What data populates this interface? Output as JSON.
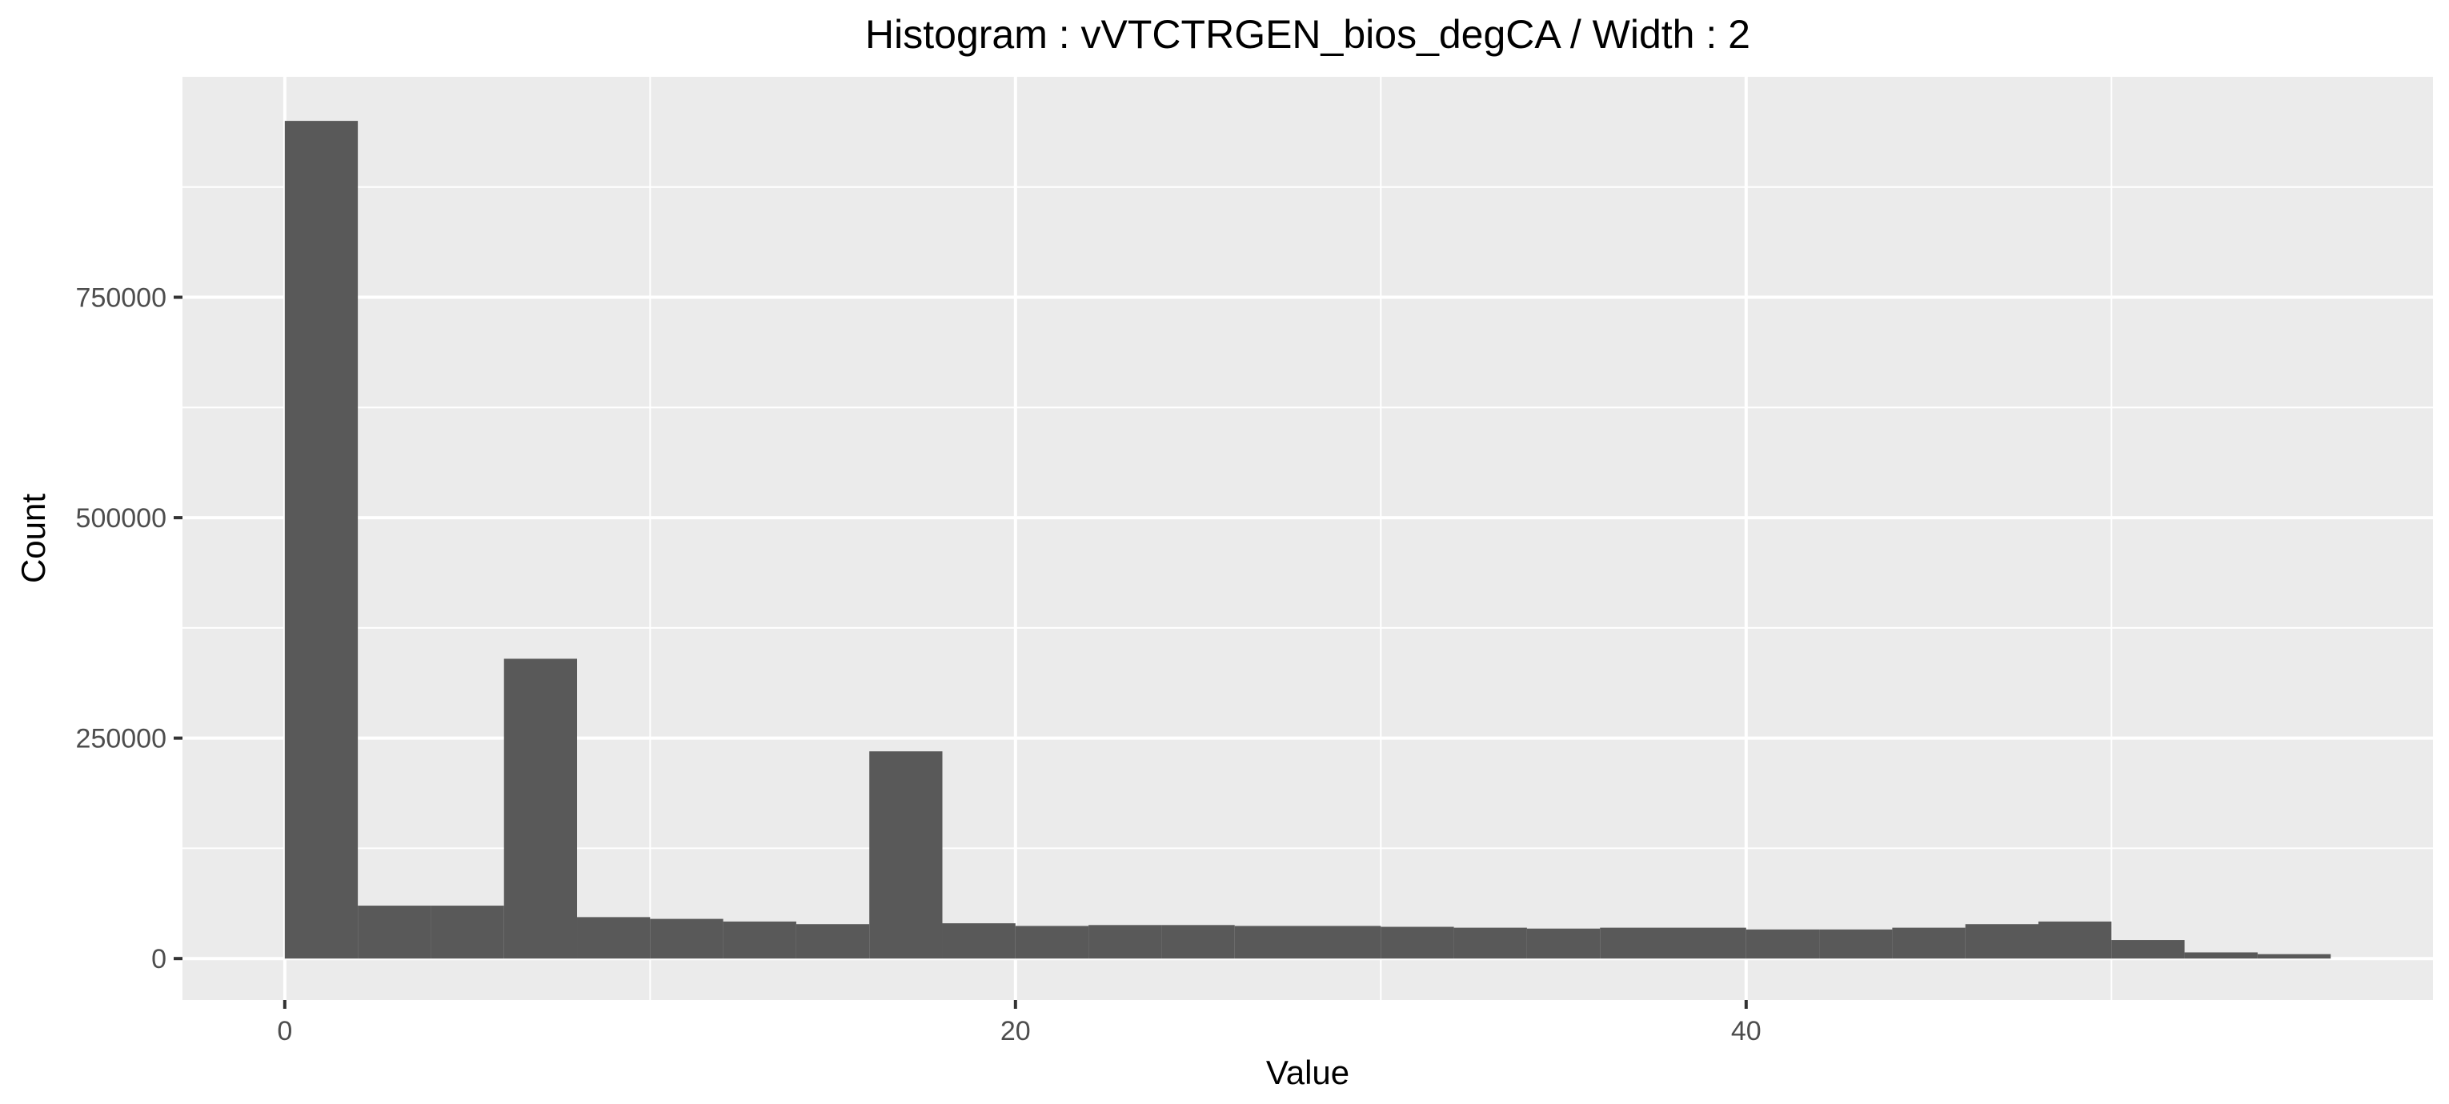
{
  "chart_data": {
    "type": "bar",
    "title": "Histogram : vVTCTRGEN_bios_degCA / Width : 2",
    "xlabel": "Value",
    "ylabel": "Count",
    "bin_width": 2,
    "xlim": [
      -2.8,
      58.8
    ],
    "ylim": [
      -47000,
      1000000
    ],
    "x_ticks": [
      0,
      20,
      40
    ],
    "x_tick_labels": [
      "0",
      "20",
      "40"
    ],
    "y_ticks": [
      0,
      250000,
      500000,
      750000
    ],
    "y_tick_labels": [
      "0",
      "250000",
      "500000",
      "750000"
    ],
    "grid": true,
    "legend": "none",
    "bins": [
      {
        "x0": 0,
        "x1": 2,
        "count": 950000
      },
      {
        "x0": 2,
        "x1": 4,
        "count": 60000
      },
      {
        "x0": 4,
        "x1": 6,
        "count": 60000
      },
      {
        "x0": 6,
        "x1": 8,
        "count": 340000
      },
      {
        "x0": 8,
        "x1": 10,
        "count": 47000
      },
      {
        "x0": 10,
        "x1": 12,
        "count": 45000
      },
      {
        "x0": 12,
        "x1": 14,
        "count": 42000
      },
      {
        "x0": 14,
        "x1": 16,
        "count": 39000
      },
      {
        "x0": 16,
        "x1": 18,
        "count": 235000
      },
      {
        "x0": 18,
        "x1": 20,
        "count": 40000
      },
      {
        "x0": 20,
        "x1": 22,
        "count": 37000
      },
      {
        "x0": 22,
        "x1": 24,
        "count": 38000
      },
      {
        "x0": 24,
        "x1": 26,
        "count": 38000
      },
      {
        "x0": 26,
        "x1": 28,
        "count": 37000
      },
      {
        "x0": 28,
        "x1": 30,
        "count": 37000
      },
      {
        "x0": 30,
        "x1": 32,
        "count": 36000
      },
      {
        "x0": 32,
        "x1": 34,
        "count": 35000
      },
      {
        "x0": 34,
        "x1": 36,
        "count": 34000
      },
      {
        "x0": 36,
        "x1": 38,
        "count": 35000
      },
      {
        "x0": 38,
        "x1": 40,
        "count": 35000
      },
      {
        "x0": 40,
        "x1": 42,
        "count": 33000
      },
      {
        "x0": 42,
        "x1": 44,
        "count": 33000
      },
      {
        "x0": 44,
        "x1": 46,
        "count": 35000
      },
      {
        "x0": 46,
        "x1": 48,
        "count": 39000
      },
      {
        "x0": 48,
        "x1": 50,
        "count": 42000
      },
      {
        "x0": 50,
        "x1": 52,
        "count": 21000
      },
      {
        "x0": 52,
        "x1": 54,
        "count": 7000
      },
      {
        "x0": 54,
        "x1": 56,
        "count": 5000
      }
    ],
    "colors": {
      "panel": "#EBEBEB",
      "grid": "#FFFFFF",
      "bar": "#595959",
      "tick": "#333333"
    }
  }
}
